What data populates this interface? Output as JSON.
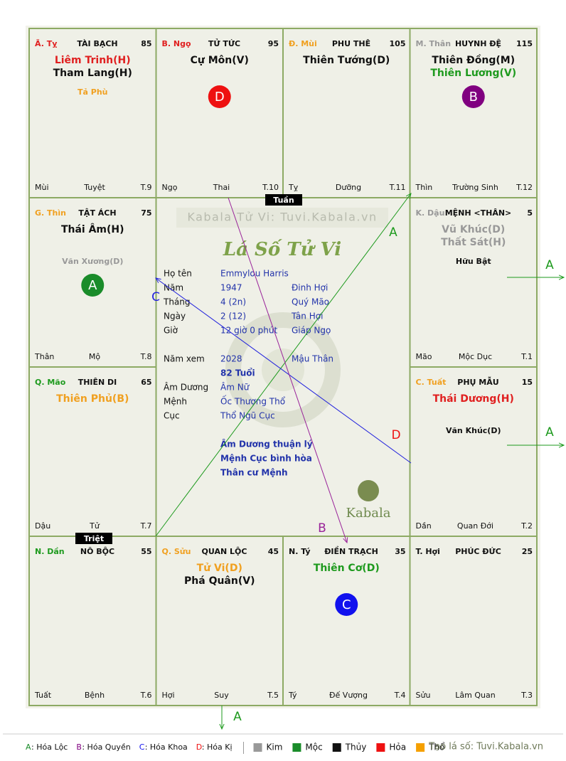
{
  "palaces": [
    {
      "can_chi": "Ã. Tỵ",
      "can_color": "#e02020",
      "name": "TÀI BẠCH",
      "number": 85,
      "main_stars": [
        {
          "name": "Liêm Trinh(H)",
          "color": "#e02020"
        },
        {
          "name": "Tham Lang(H)",
          "color": "#111111"
        }
      ],
      "minor_stars": [
        {
          "name": "Tả Phù",
          "color": "#f0a020"
        }
      ],
      "branch": "Mùi",
      "stage": "Tuyệt",
      "term": "T.9"
    },
    {
      "can_chi": "B. Ngọ",
      "can_color": "#e02020",
      "name": "TỬ TỨC",
      "number": 95,
      "main_stars": [
        {
          "name": "Cự Môn(V)",
          "color": "#111111"
        }
      ],
      "minor_stars": [],
      "marker": {
        "label": "D",
        "color": "#ee1111"
      },
      "branch": "Ngọ",
      "stage": "Thai",
      "term": "T.10"
    },
    {
      "can_chi": "Đ. Mùi",
      "can_color": "#f0a020",
      "name": "PHU THÊ",
      "number": 105,
      "main_stars": [
        {
          "name": "Thiên Tướng(D)",
          "color": "#111111"
        }
      ],
      "minor_stars": [],
      "branch": "Tỵ",
      "stage": "Dưỡng",
      "term": "T.11"
    },
    {
      "can_chi": "M. Thân",
      "can_color": "#999999",
      "name": "HUYNH ĐỆ",
      "number": 115,
      "main_stars": [
        {
          "name": "Thiên Đồng(M)",
          "color": "#111111"
        },
        {
          "name": "Thiên Lương(V)",
          "color": "#1e9a1e"
        }
      ],
      "minor_stars": [],
      "marker": {
        "label": "B",
        "color": "#800080"
      },
      "branch": "Thìn",
      "stage": "Trường Sinh",
      "term": "T.12"
    },
    {
      "can_chi": "G. Thìn",
      "can_color": "#f0a020",
      "name": "TẬT ÁCH",
      "number": 75,
      "main_stars": [
        {
          "name": "Thái Âm(H)",
          "color": "#111111"
        }
      ],
      "minor_stars": [
        {
          "name": "Văn Xương(D)",
          "color": "#999999"
        }
      ],
      "marker": {
        "label": "A",
        "color": "#1a8c2a"
      },
      "branch": "Thân",
      "stage": "Mộ",
      "term": "T.8"
    },
    {
      "can_chi": "K. Dậu",
      "can_color": "#999999",
      "name": "MỆNH <THÂN>",
      "number": 5,
      "main_stars": [
        {
          "name": "Vũ Khúc(D)",
          "color": "#999999"
        },
        {
          "name": "Thất Sát(H)",
          "color": "#999999"
        }
      ],
      "minor_stars": [
        {
          "name": "Hữu Bật",
          "color": "#111111"
        }
      ],
      "branch": "Mão",
      "stage": "Mộc Dục",
      "term": "T.1"
    },
    {
      "can_chi": "Q. Mão",
      "can_color": "#1e9a1e",
      "name": "THIÊN DI",
      "number": 65,
      "main_stars": [
        {
          "name": "Thiên Phủ(B)",
          "color": "#f0a020"
        }
      ],
      "minor_stars": [],
      "branch": "Dậu",
      "stage": "Tử",
      "term": "T.7"
    },
    {
      "can_chi": "C. Tuất",
      "can_color": "#f0a020",
      "name": "PHỤ MẪU",
      "number": 15,
      "main_stars": [
        {
          "name": "Thái Dương(H)",
          "color": "#e02020"
        }
      ],
      "minor_stars": [
        {
          "name": "Văn Khúc(D)",
          "color": "#111111"
        }
      ],
      "branch": "Dần",
      "stage": "Quan Đới",
      "term": "T.2"
    },
    {
      "can_chi": "N. Dần",
      "can_color": "#1e9a1e",
      "name": "NÔ BỘC",
      "number": 55,
      "main_stars": [],
      "minor_stars": [],
      "branch": "Tuất",
      "stage": "Bệnh",
      "term": "T.6"
    },
    {
      "can_chi": "Q. Sửu",
      "can_color": "#f0a020",
      "name": "QUAN LỘC",
      "number": 45,
      "main_stars": [
        {
          "name": "Tử Vi(D)",
          "color": "#f0a020"
        },
        {
          "name": "Phá Quân(V)",
          "color": "#111111"
        }
      ],
      "minor_stars": [],
      "branch": "Hợi",
      "stage": "Suy",
      "term": "T.5"
    },
    {
      "can_chi": "N. Tý",
      "can_color": "#111111",
      "name": "ĐIỀN TRẠCH",
      "number": 35,
      "main_stars": [
        {
          "name": "Thiên Cơ(D)",
          "color": "#1e9a1e"
        }
      ],
      "minor_stars": [],
      "marker": {
        "label": "C",
        "color": "#1111ee"
      },
      "branch": "Tý",
      "stage": "Đế Vượng",
      "term": "T.4"
    },
    {
      "can_chi": "T. Hợi",
      "can_color": "#111111",
      "name": "PHÚC ĐỨC",
      "number": 25,
      "main_stars": [],
      "minor_stars": [],
      "branch": "Sửu",
      "stage": "Lâm Quan",
      "term": "T.3"
    }
  ],
  "center": {
    "watermark": "Kabala Tử Vi: Tuvi.Kabala.vn",
    "title": "Lá Số Tử Vi",
    "info": [
      {
        "label": "Họ tên",
        "value": "Emmylou Harris"
      },
      {
        "label": "Năm",
        "value": "1947",
        "extra": "Đinh Hợi"
      },
      {
        "label": "Tháng",
        "value": "4  (2n)",
        "extra": "Quý Mão"
      },
      {
        "label": "Ngày",
        "value": "2  (12)",
        "extra": "Tân Hợi"
      },
      {
        "label": "Giờ",
        "value": "12 giờ 0 phút",
        "extra": "Giáp Ngọ"
      },
      {
        "label": "Năm xem",
        "value": "2028",
        "extra": "Mậu Thân"
      },
      {
        "value": "82 Tuổi"
      },
      {
        "label": "Âm Dương",
        "value": "Âm Nữ"
      },
      {
        "label": "Mệnh",
        "value": "Ốc Thượng Thổ"
      },
      {
        "label": "Cục",
        "value": "Thổ Ngũ Cục"
      }
    ],
    "notes": [
      "Âm Dương thuận lý",
      "Mệnh Cục bình hòa",
      "Thân cư Mệnh"
    ],
    "logo": "Kabala"
  },
  "tuan": "Tuần",
  "triet": "Triệt",
  "arrow_labels": [
    "A",
    "A",
    "A",
    "A",
    "C",
    "D",
    "B"
  ],
  "legend": {
    "transforms": [
      {
        "letter": "A",
        "text": ": Hóa Lộc",
        "color": "#1a8c2a"
      },
      {
        "letter": "B",
        "text": ": Hóa Quyền",
        "color": "#800080"
      },
      {
        "letter": "C",
        "text": ": Hóa Khoa",
        "color": "#1111ee"
      },
      {
        "letter": "D",
        "text": ": Hóa Kị",
        "color": "#ee1111"
      }
    ],
    "elements": [
      {
        "name": "Kim",
        "color": "#999999"
      },
      {
        "name": "Mộc",
        "color": "#1a8c2a"
      },
      {
        "name": "Thủy",
        "color": "#111111"
      },
      {
        "name": "Hỏa",
        "color": "#ee1111"
      },
      {
        "name": "Thổ",
        "color": "#f5a000"
      }
    ],
    "credit": "Tạo lá số: Tuvi.Kabala.vn"
  }
}
